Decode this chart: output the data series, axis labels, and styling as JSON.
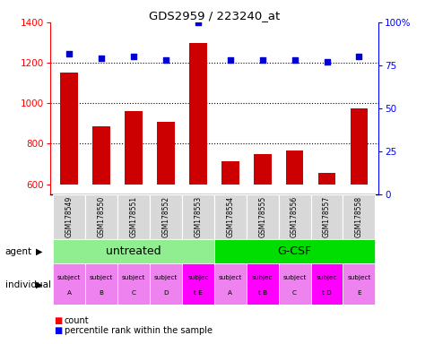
{
  "title": "GDS2959 / 223240_at",
  "samples": [
    "GSM178549",
    "GSM178550",
    "GSM178551",
    "GSM178552",
    "GSM178553",
    "GSM178554",
    "GSM178555",
    "GSM178556",
    "GSM178557",
    "GSM178558"
  ],
  "counts": [
    1150,
    885,
    960,
    910,
    1300,
    715,
    750,
    765,
    655,
    975
  ],
  "percentile_ranks": [
    82,
    79,
    80,
    78,
    100,
    78,
    78,
    78,
    77,
    80
  ],
  "ylim_left": [
    550,
    1400
  ],
  "ylim_right": [
    0,
    100
  ],
  "yticks_left": [
    600,
    800,
    1000,
    1200,
    1400
  ],
  "yticks_right": [
    0,
    25,
    50,
    75,
    100
  ],
  "bar_bottom": 600,
  "bar_color": "#cc0000",
  "dot_color": "#0000cc",
  "agent_groups": [
    {
      "label": "untreated",
      "start": 0,
      "end": 5,
      "color": "#90ee90"
    },
    {
      "label": "G-CSF",
      "start": 5,
      "end": 10,
      "color": "#00dd00"
    }
  ],
  "individual_labels": [
    [
      "subject",
      "A"
    ],
    [
      "subject",
      "B"
    ],
    [
      "subject",
      "C"
    ],
    [
      "subject",
      "D"
    ],
    [
      "subjec",
      "t E"
    ],
    [
      "subject",
      "A"
    ],
    [
      "subjec",
      "t B"
    ],
    [
      "subject",
      "C"
    ],
    [
      "subjec",
      "t D"
    ],
    [
      "subject",
      "E"
    ]
  ],
  "individual_colors": [
    "#ee82ee",
    "#ee82ee",
    "#ee82ee",
    "#ee82ee",
    "#ff00ff",
    "#ee82ee",
    "#ff00ff",
    "#ee82ee",
    "#ff00ff",
    "#ee82ee"
  ],
  "grid_yticks": [
    800,
    1000,
    1200
  ],
  "bg_color": "#ffffff",
  "xtick_bg": "#d8d8d8"
}
